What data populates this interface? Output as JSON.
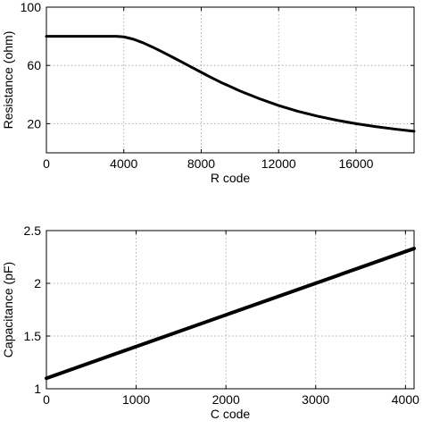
{
  "chart_data": [
    {
      "type": "line",
      "xlabel": "R code",
      "ylabel": "Resistance (ohm)",
      "xlim": [
        0,
        19000
      ],
      "ylim": [
        0,
        100
      ],
      "xticks": [
        0,
        4000,
        8000,
        12000,
        16000
      ],
      "xtick_labels": [
        "0",
        "4000",
        "8000",
        "12000",
        "16000"
      ],
      "yticks": [
        20,
        60,
        100
      ],
      "ytick_labels": [
        "20",
        "60",
        "100"
      ],
      "grid": true,
      "series": [
        {
          "x": [
            0,
            1000,
            2000,
            3000,
            3600,
            4000,
            4500,
            5000,
            5500,
            6000,
            6500,
            7000,
            7500,
            8000,
            8500,
            9000,
            10000,
            11000,
            12000,
            13000,
            14000,
            15000,
            16000,
            17000,
            18000,
            19000
          ],
          "y": [
            80,
            80,
            80,
            80,
            80,
            79.6,
            78,
            75.5,
            72.5,
            69.2,
            65.8,
            62.3,
            58.8,
            55.3,
            51.8,
            48.5,
            42.5,
            37.2,
            32.5,
            28.5,
            25.2,
            22.4,
            20,
            18,
            16.3,
            14.8
          ]
        }
      ]
    },
    {
      "type": "line",
      "xlabel": "C code",
      "ylabel": "Capacitance (pF)",
      "xlim": [
        0,
        4096
      ],
      "ylim": [
        1,
        2.5
      ],
      "xticks": [
        0,
        1000,
        2000,
        3000,
        4000
      ],
      "xtick_labels": [
        "0",
        "1000",
        "2000",
        "3000",
        "4000"
      ],
      "yticks": [
        1,
        1.5,
        2,
        2.5
      ],
      "ytick_labels": [
        "1",
        "1.5",
        "2",
        "2.5"
      ],
      "grid": true,
      "series": [
        {
          "x": [
            0,
            4096
          ],
          "y": [
            1.1,
            2.33
          ]
        }
      ]
    }
  ]
}
